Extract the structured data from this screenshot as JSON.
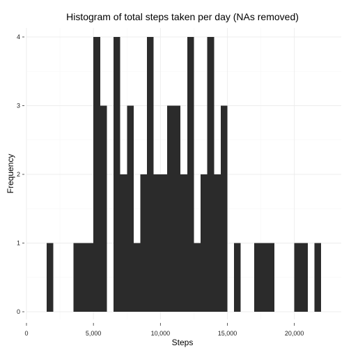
{
  "chart_data": {
    "type": "bar",
    "title": "Histogram of total steps taken per day (NAs removed)",
    "xlabel": "Steps",
    "ylabel": "Frequency",
    "bin_width": 500,
    "bins": [
      {
        "x_start": 1500,
        "x_end": 2000,
        "count": 1
      },
      {
        "x_start": 3500,
        "x_end": 4000,
        "count": 1
      },
      {
        "x_start": 4000,
        "x_end": 4500,
        "count": 1
      },
      {
        "x_start": 4500,
        "x_end": 5000,
        "count": 1
      },
      {
        "x_start": 5000,
        "x_end": 5500,
        "count": 4
      },
      {
        "x_start": 5500,
        "x_end": 6000,
        "count": 3
      },
      {
        "x_start": 6500,
        "x_end": 7000,
        "count": 4
      },
      {
        "x_start": 7000,
        "x_end": 7500,
        "count": 2
      },
      {
        "x_start": 7500,
        "x_end": 8000,
        "count": 3
      },
      {
        "x_start": 8000,
        "x_end": 8500,
        "count": 1
      },
      {
        "x_start": 8500,
        "x_end": 9000,
        "count": 2
      },
      {
        "x_start": 9000,
        "x_end": 9500,
        "count": 4
      },
      {
        "x_start": 9500,
        "x_end": 10000,
        "count": 2
      },
      {
        "x_start": 10000,
        "x_end": 10500,
        "count": 2
      },
      {
        "x_start": 10500,
        "x_end": 11000,
        "count": 3
      },
      {
        "x_start": 11000,
        "x_end": 11500,
        "count": 3
      },
      {
        "x_start": 11500,
        "x_end": 12000,
        "count": 2
      },
      {
        "x_start": 12000,
        "x_end": 12500,
        "count": 4
      },
      {
        "x_start": 12500,
        "x_end": 13000,
        "count": 1
      },
      {
        "x_start": 13000,
        "x_end": 13500,
        "count": 2
      },
      {
        "x_start": 13500,
        "x_end": 14000,
        "count": 4
      },
      {
        "x_start": 14000,
        "x_end": 14500,
        "count": 2
      },
      {
        "x_start": 14500,
        "x_end": 15000,
        "count": 3
      },
      {
        "x_start": 15500,
        "x_end": 16000,
        "count": 1
      },
      {
        "x_start": 17000,
        "x_end": 17500,
        "count": 1
      },
      {
        "x_start": 17500,
        "x_end": 18000,
        "count": 1
      },
      {
        "x_start": 18000,
        "x_end": 18500,
        "count": 1
      },
      {
        "x_start": 20000,
        "x_end": 20500,
        "count": 1
      },
      {
        "x_start": 20500,
        "x_end": 21000,
        "count": 1
      },
      {
        "x_start": 21500,
        "x_end": 22000,
        "count": 1
      }
    ],
    "xlim": [
      0,
      23500
    ],
    "ylim": [
      0,
      4
    ],
    "x_ticks": [
      0,
      5000,
      10000,
      15000,
      20000
    ],
    "x_tick_labels": [
      "0",
      "5,000",
      "10,000",
      "15,000",
      "20,000"
    ],
    "y_ticks": [
      0,
      1,
      2,
      3,
      4
    ],
    "y_tick_labels": [
      "0",
      "1",
      "2",
      "3",
      "4"
    ],
    "grid": true,
    "legend": "none",
    "colors": {
      "bar_fill": "#2b2b2b",
      "background": "#ffffff",
      "grid_major": "#ececec",
      "grid_minor": "#f6f6f6"
    }
  }
}
